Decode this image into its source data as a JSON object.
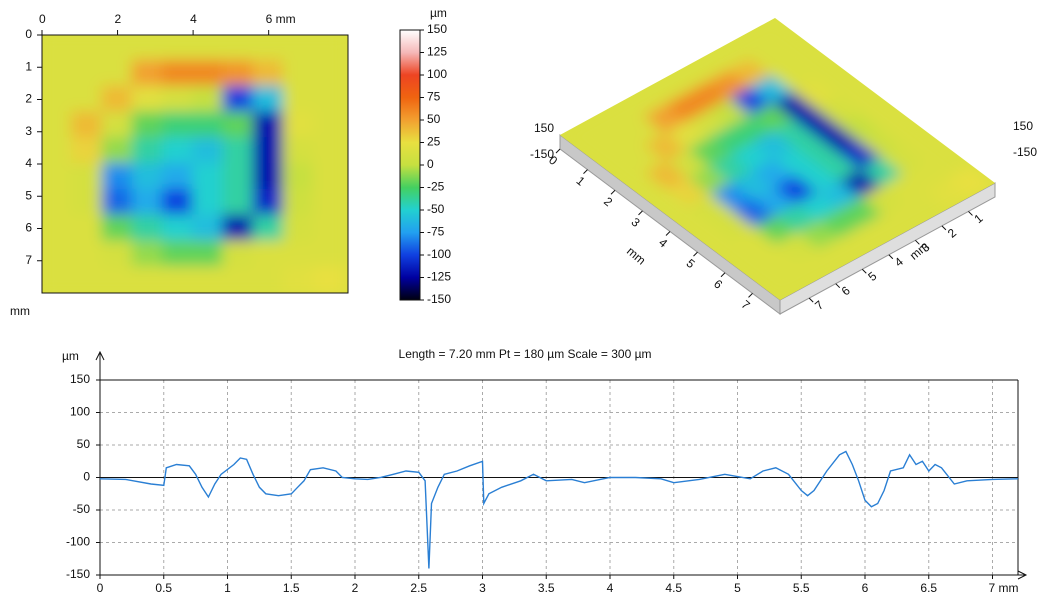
{
  "chart_data": [
    {
      "type": "heatmap",
      "x": [
        0.4,
        1.2,
        2.0,
        2.8,
        3.6,
        4.4,
        5.2,
        6.0,
        6.8,
        7.6
      ],
      "y": [
        0.4,
        1.2,
        2.0,
        2.8,
        3.6,
        4.4,
        5.2,
        6.0,
        6.8,
        7.6
      ],
      "z": [
        [
          15,
          15,
          15,
          15,
          15,
          15,
          15,
          15,
          15,
          15
        ],
        [
          15,
          15,
          15,
          50,
          60,
          60,
          55,
          40,
          15,
          15
        ],
        [
          15,
          15,
          40,
          20,
          10,
          0,
          -100,
          -60,
          15,
          15
        ],
        [
          15,
          40,
          10,
          -20,
          -30,
          -30,
          -20,
          -120,
          20,
          15
        ],
        [
          15,
          30,
          -10,
          -40,
          -50,
          -60,
          -40,
          -120,
          10,
          15
        ],
        [
          15,
          10,
          -80,
          -60,
          -70,
          -50,
          -40,
          -120,
          0,
          15
        ],
        [
          15,
          10,
          -90,
          -70,
          -100,
          -50,
          -40,
          -110,
          5,
          15
        ],
        [
          15,
          15,
          -20,
          -40,
          -50,
          -60,
          -120,
          -40,
          10,
          15
        ],
        [
          15,
          15,
          10,
          -10,
          -20,
          -20,
          10,
          15,
          15,
          15
        ],
        [
          15,
          15,
          15,
          15,
          15,
          15,
          15,
          15,
          20,
          25
        ]
      ],
      "xlim": [
        0,
        8.1
      ],
      "ylim": [
        0,
        8
      ],
      "xticks": [
        0,
        2,
        4,
        {
          "value": 6,
          "label": "6 mm"
        }
      ],
      "yticks": [
        0,
        1,
        2,
        3,
        4,
        5,
        6,
        7
      ],
      "ylabel": "mm",
      "colorbar": {
        "label": "µm",
        "ticks": [
          150,
          125,
          100,
          75,
          50,
          25,
          0,
          -25,
          -50,
          -75,
          -100,
          -125,
          -150
        ],
        "colors": [
          "#ffffff",
          "#f5b8b8",
          "#ee4422",
          "#f06410",
          "#f2a030",
          "#e8e040",
          "#c6e040",
          "#44d060",
          "#22d0d0",
          "#22a0f0",
          "#1040e0",
          "#0000a0",
          "#000010"
        ]
      }
    },
    {
      "type": "surface3d",
      "zticks": [
        150,
        -150
      ],
      "xticks": [
        1,
        2,
        3,
        4,
        5,
        6,
        7
      ],
      "yticks": [
        0,
        1,
        2,
        3,
        4,
        5,
        6,
        7
      ],
      "xlabel": "mm",
      "ylabel": "mm"
    },
    {
      "type": "line",
      "title": "Length = 7.20 mm  Pt = 180 µm  Scale = 300 µm",
      "ylabel": "µm",
      "color": "#2a7fd4",
      "grid": true,
      "xlim": [
        0,
        7.2
      ],
      "ylim": [
        -150,
        150
      ],
      "xticks": [
        0,
        0.5,
        1,
        1.5,
        2,
        2.5,
        3,
        3.5,
        4,
        4.5,
        5,
        5.5,
        6,
        6.5,
        {
          "value": 7,
          "label": "7 mm"
        }
      ],
      "yticks": [
        -150,
        -100,
        -50,
        0,
        50,
        100,
        150
      ],
      "x": [
        0,
        0.2,
        0.4,
        0.5,
        0.52,
        0.6,
        0.7,
        0.75,
        0.8,
        0.85,
        0.9,
        0.95,
        1.05,
        1.1,
        1.15,
        1.2,
        1.25,
        1.3,
        1.4,
        1.5,
        1.55,
        1.6,
        1.65,
        1.75,
        1.85,
        1.9,
        2.0,
        2.1,
        2.2,
        2.3,
        2.4,
        2.5,
        2.55,
        2.58,
        2.6,
        2.65,
        2.7,
        2.8,
        2.9,
        3.0,
        3.01,
        3.05,
        3.15,
        3.3,
        3.4,
        3.5,
        3.7,
        3.8,
        4.0,
        4.2,
        4.4,
        4.5,
        4.7,
        4.9,
        5.1,
        5.2,
        5.3,
        5.4,
        5.5,
        5.55,
        5.6,
        5.7,
        5.8,
        5.85,
        5.9,
        5.95,
        6.0,
        6.05,
        6.1,
        6.15,
        6.2,
        6.3,
        6.35,
        6.4,
        6.45,
        6.5,
        6.55,
        6.6,
        6.7,
        6.8,
        7.0,
        7.2
      ],
      "values": [
        -2,
        -3,
        -10,
        -12,
        15,
        20,
        18,
        5,
        -15,
        -30,
        -10,
        5,
        20,
        30,
        28,
        5,
        -15,
        -25,
        -28,
        -25,
        -15,
        -5,
        12,
        15,
        10,
        0,
        -2,
        -3,
        0,
        5,
        10,
        8,
        -5,
        -140,
        -40,
        -15,
        5,
        10,
        18,
        25,
        -40,
        -25,
        -15,
        -5,
        5,
        -5,
        -3,
        -8,
        0,
        0,
        -2,
        -8,
        -3,
        5,
        -2,
        10,
        15,
        5,
        -20,
        -28,
        -20,
        10,
        35,
        40,
        20,
        -5,
        -35,
        -45,
        -40,
        -20,
        10,
        15,
        35,
        20,
        25,
        10,
        20,
        15,
        -10,
        -5,
        -3,
        -2
      ]
    }
  ]
}
